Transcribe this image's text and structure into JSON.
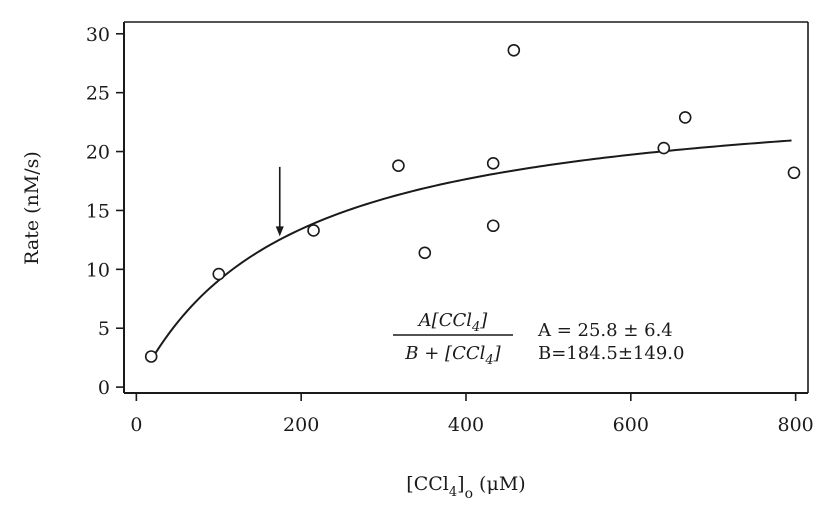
{
  "chart_data": {
    "type": "scatter",
    "xlabel_main": "[CCl",
    "xlabel_sub1": "4",
    "xlabel_close": "]",
    "xlabel_sub2": "o",
    "xlabel_unit": " (μM)",
    "ylabel": "Rate (nM/s)",
    "xlim": [
      -15,
      815
    ],
    "ylim": [
      -0.5,
      31
    ],
    "x_ticks": [
      0,
      200,
      400,
      600,
      800
    ],
    "y_ticks": [
      0,
      5,
      10,
      15,
      20,
      25,
      30
    ],
    "x_tick_labels": [
      "0",
      "200",
      "400",
      "600",
      "800"
    ],
    "y_tick_labels": [
      "0",
      "5",
      "10",
      "15",
      "20",
      "25",
      "30"
    ],
    "points": [
      {
        "x": 18,
        "y": 2.6
      },
      {
        "x": 100,
        "y": 9.6
      },
      {
        "x": 215,
        "y": 13.3
      },
      {
        "x": 318,
        "y": 18.8
      },
      {
        "x": 350,
        "y": 11.4
      },
      {
        "x": 433,
        "y": 13.7
      },
      {
        "x": 433,
        "y": 19.0
      },
      {
        "x": 458,
        "y": 28.6
      },
      {
        "x": 640,
        "y": 20.3
      },
      {
        "x": 666,
        "y": 22.9
      },
      {
        "x": 798,
        "y": 18.2
      }
    ],
    "fit": {
      "A": 25.8,
      "B": 184.5,
      "x_range": [
        18,
        795
      ]
    },
    "arrow": {
      "x": 174,
      "y_top": 18.7,
      "y_bottom": 12.8
    },
    "equation": {
      "numerator": "A[CCl",
      "numerator_sub": "4",
      "numerator_close": "]",
      "denominator": "B + [CCl",
      "denominator_sub": "4",
      "denominator_close": "]",
      "param_a": "A = 25.8 ± 6.4",
      "param_b": "B=184.5±149.0"
    },
    "grid": false,
    "colors": {
      "ink": "#1a1a1a",
      "background": "#ffffff"
    }
  }
}
